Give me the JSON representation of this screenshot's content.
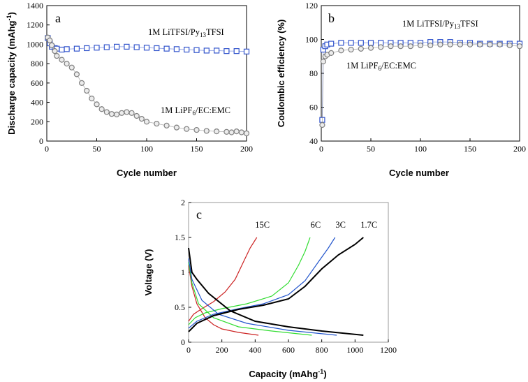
{
  "chart_data": [
    {
      "type": "scatter",
      "panel_label": "a",
      "xlabel": "Cycle number",
      "ylabel": "Discharge capacity  (mAhg",
      "ylabel_sup": "-1",
      "ylabel_end": ")",
      "xlim": [
        0,
        200
      ],
      "ylim": [
        0,
        1400
      ],
      "xticks": [
        "0",
        "50",
        "100",
        "150",
        "200"
      ],
      "yticks": [
        "0",
        "200",
        "400",
        "600",
        "800",
        "1000",
        "1200",
        "1400"
      ],
      "annotations": [
        {
          "id": "ann-a-litfsi",
          "parts": [
            "1M LiTFSI/Py",
            "13",
            "TFSI"
          ]
        },
        {
          "id": "ann-a-lipf6",
          "parts": [
            "1M LiPF",
            "6",
            "/EC:EMC"
          ]
        }
      ],
      "series": [
        {
          "name": "1M LiTFSI/Py13TFSI",
          "marker": "square",
          "color": "#3355cc",
          "points": [
            [
              1,
              1065
            ],
            [
              3,
              1010
            ],
            [
              5,
              975
            ],
            [
              8,
              960
            ],
            [
              10,
              955
            ],
            [
              15,
              945
            ],
            [
              20,
              950
            ],
            [
              30,
              955
            ],
            [
              40,
              960
            ],
            [
              50,
              965
            ],
            [
              60,
              970
            ],
            [
              70,
              975
            ],
            [
              80,
              975
            ],
            [
              90,
              970
            ],
            [
              100,
              965
            ],
            [
              110,
              960
            ],
            [
              120,
              955
            ],
            [
              130,
              950
            ],
            [
              140,
              945
            ],
            [
              150,
              940
            ],
            [
              160,
              935
            ],
            [
              170,
              935
            ],
            [
              180,
              930
            ],
            [
              190,
              930
            ],
            [
              200,
              925
            ]
          ]
        },
        {
          "name": "1M LiPF6/EC:EMC",
          "marker": "circle",
          "color": "#7f7f7f",
          "points": [
            [
              1,
              1070
            ],
            [
              3,
              1040
            ],
            [
              5,
              990
            ],
            [
              8,
              930
            ],
            [
              10,
              880
            ],
            [
              15,
              840
            ],
            [
              20,
              800
            ],
            [
              25,
              760
            ],
            [
              30,
              690
            ],
            [
              35,
              600
            ],
            [
              40,
              520
            ],
            [
              45,
              440
            ],
            [
              50,
              380
            ],
            [
              55,
              330
            ],
            [
              60,
              300
            ],
            [
              65,
              280
            ],
            [
              70,
              275
            ],
            [
              75,
              290
            ],
            [
              80,
              300
            ],
            [
              85,
              290
            ],
            [
              90,
              260
            ],
            [
              95,
              230
            ],
            [
              100,
              200
            ],
            [
              110,
              180
            ],
            [
              120,
              160
            ],
            [
              130,
              140
            ],
            [
              140,
              125
            ],
            [
              150,
              115
            ],
            [
              160,
              105
            ],
            [
              170,
              100
            ],
            [
              180,
              95
            ],
            [
              185,
              90
            ],
            [
              190,
              100
            ],
            [
              195,
              90
            ],
            [
              200,
              80
            ]
          ]
        }
      ]
    },
    {
      "type": "scatter",
      "panel_label": "b",
      "xlabel": "Cycle number",
      "ylabel": "Coulombic efficiency (%)",
      "xlim": [
        0,
        200
      ],
      "ylim": [
        40,
        120
      ],
      "xticks": [
        "0",
        "50",
        "100",
        "150",
        "200"
      ],
      "yticks": [
        "40",
        "60",
        "80",
        "100",
        "120"
      ],
      "annotations": [
        {
          "id": "ann-b-litfsi",
          "parts": [
            "1M LiTFSI/Py",
            "13",
            "TFSI"
          ]
        },
        {
          "id": "ann-b-lipf6",
          "parts": [
            "1M LiPF",
            "6",
            "/EC:EMC"
          ]
        }
      ],
      "series": [
        {
          "name": "1M LiTFSI/Py13TFSI",
          "marker": "square",
          "color": "#3355cc",
          "points": [
            [
              1,
              52.5
            ],
            [
              2,
              94
            ],
            [
              4,
              96
            ],
            [
              6,
              97
            ],
            [
              10,
              97.5
            ],
            [
              20,
              98
            ],
            [
              30,
              98
            ],
            [
              40,
              98
            ],
            [
              50,
              98
            ],
            [
              60,
              98
            ],
            [
              70,
              98
            ],
            [
              80,
              98
            ],
            [
              90,
              98
            ],
            [
              100,
              98
            ],
            [
              110,
              98.5
            ],
            [
              120,
              98.5
            ],
            [
              130,
              98.5
            ],
            [
              140,
              98
            ],
            [
              150,
              98
            ],
            [
              160,
              97.5
            ],
            [
              170,
              97.5
            ],
            [
              180,
              97.5
            ],
            [
              190,
              97.5
            ],
            [
              200,
              97.5
            ]
          ]
        },
        {
          "name": "1M LiPF6/EC:EMC",
          "marker": "circle",
          "color": "#7f7f7f",
          "points": [
            [
              1,
              49.5
            ],
            [
              2,
              87
            ],
            [
              4,
              90
            ],
            [
              6,
              91
            ],
            [
              10,
              92
            ],
            [
              20,
              93.5
            ],
            [
              30,
              94
            ],
            [
              40,
              94.5
            ],
            [
              50,
              95
            ],
            [
              60,
              95.5
            ],
            [
              70,
              96
            ],
            [
              80,
              96
            ],
            [
              90,
              96
            ],
            [
              100,
              96.5
            ],
            [
              110,
              96.5
            ],
            [
              120,
              97
            ],
            [
              130,
              97
            ],
            [
              140,
              97
            ],
            [
              150,
              97
            ],
            [
              160,
              97
            ],
            [
              170,
              97
            ],
            [
              180,
              97
            ],
            [
              190,
              96.5
            ],
            [
              200,
              96
            ]
          ]
        }
      ]
    },
    {
      "type": "line",
      "panel_label": "c",
      "xlabel": "Capacity  (mAhg",
      "xlabel_sup": "-1",
      "xlabel_end": ")",
      "ylabel": "Voltage  (V)",
      "xlim": [
        0,
        1200
      ],
      "ylim": [
        0,
        2
      ],
      "xticks": [
        "0",
        "200",
        "400",
        "600",
        "800",
        "1000",
        "1200"
      ],
      "yticks": [
        "0",
        "0.5",
        "1",
        "1.5",
        "2"
      ],
      "series": [
        {
          "name": "15C",
          "color": "#cc2222",
          "discharge": [
            [
              0,
              1.1
            ],
            [
              20,
              0.8
            ],
            [
              50,
              0.55
            ],
            [
              100,
              0.35
            ],
            [
              150,
              0.25
            ],
            [
              200,
              0.19
            ],
            [
              300,
              0.14
            ],
            [
              420,
              0.1
            ]
          ],
          "charge": [
            [
              0,
              0.3
            ],
            [
              30,
              0.4
            ],
            [
              80,
              0.48
            ],
            [
              150,
              0.58
            ],
            [
              220,
              0.72
            ],
            [
              280,
              0.9
            ],
            [
              330,
              1.15
            ],
            [
              370,
              1.35
            ],
            [
              410,
              1.5
            ]
          ]
        },
        {
          "name": "6C",
          "color": "#33dd33",
          "discharge": [
            [
              0,
              1.15
            ],
            [
              20,
              0.85
            ],
            [
              60,
              0.55
            ],
            [
              150,
              0.35
            ],
            [
              300,
              0.22
            ],
            [
              500,
              0.16
            ],
            [
              740,
              0.1
            ]
          ],
          "charge": [
            [
              0,
              0.25
            ],
            [
              40,
              0.35
            ],
            [
              100,
              0.42
            ],
            [
              200,
              0.48
            ],
            [
              350,
              0.55
            ],
            [
              500,
              0.66
            ],
            [
              600,
              0.85
            ],
            [
              660,
              1.1
            ],
            [
              700,
              1.3
            ],
            [
              730,
              1.5
            ]
          ]
        },
        {
          "name": "3C",
          "color": "#2255cc",
          "discharge": [
            [
              0,
              1.2
            ],
            [
              20,
              0.9
            ],
            [
              80,
              0.6
            ],
            [
              180,
              0.4
            ],
            [
              350,
              0.27
            ],
            [
              600,
              0.17
            ],
            [
              890,
              0.1
            ]
          ],
          "charge": [
            [
              0,
              0.2
            ],
            [
              50,
              0.3
            ],
            [
              150,
              0.4
            ],
            [
              300,
              0.48
            ],
            [
              450,
              0.55
            ],
            [
              600,
              0.68
            ],
            [
              700,
              0.88
            ],
            [
              780,
              1.15
            ],
            [
              840,
              1.35
            ],
            [
              880,
              1.5
            ]
          ]
        },
        {
          "name": "1.7C",
          "color": "#000000",
          "discharge": [
            [
              0,
              1.35
            ],
            [
              20,
              1.0
            ],
            [
              50,
              0.9
            ],
            [
              120,
              0.7
            ],
            [
              250,
              0.45
            ],
            [
              400,
              0.3
            ],
            [
              600,
              0.22
            ],
            [
              800,
              0.16
            ],
            [
              1050,
              0.1
            ]
          ],
          "charge": [
            [
              0,
              0.15
            ],
            [
              50,
              0.27
            ],
            [
              150,
              0.38
            ],
            [
              300,
              0.47
            ],
            [
              450,
              0.53
            ],
            [
              600,
              0.62
            ],
            [
              700,
              0.8
            ],
            [
              800,
              1.05
            ],
            [
              900,
              1.25
            ],
            [
              1000,
              1.4
            ],
            [
              1050,
              1.5
            ]
          ]
        }
      ]
    }
  ]
}
